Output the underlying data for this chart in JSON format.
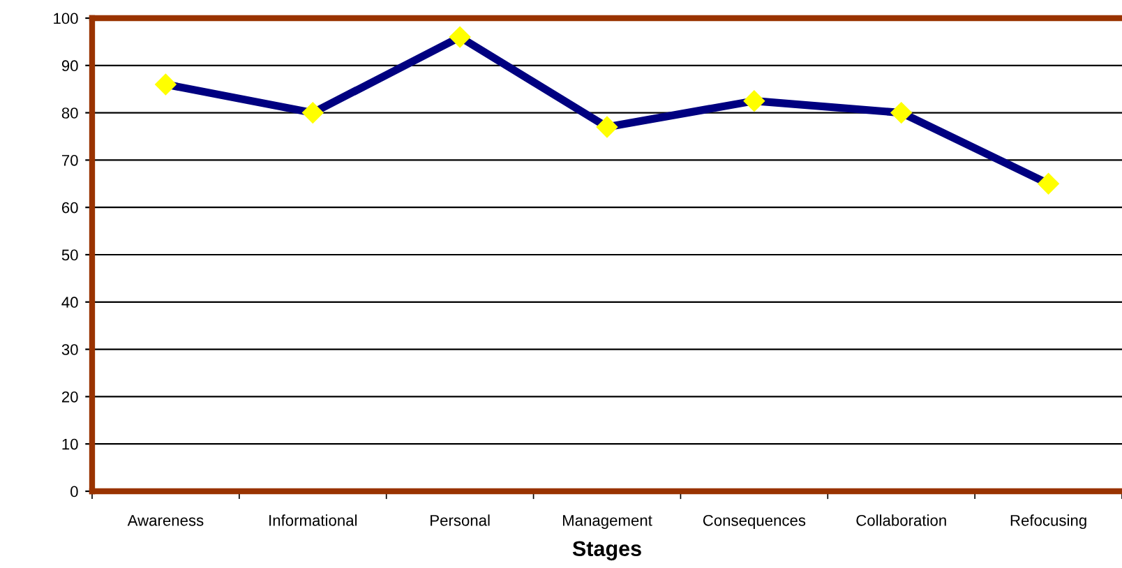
{
  "chart_data": {
    "type": "line",
    "xlabel": "Stages",
    "categories": [
      "Awareness",
      "Informational",
      "Personal",
      "Management",
      "Consequences",
      "Collaboration",
      "Refocusing"
    ],
    "series": [
      {
        "color": "#000080",
        "values": [
          86,
          80,
          96,
          77,
          82.5,
          80,
          65
        ]
      }
    ],
    "ylim": [
      0,
      100
    ],
    "yticks": [
      0,
      10,
      20,
      30,
      40,
      50,
      60,
      70,
      80,
      90,
      100
    ],
    "grid": "y",
    "marker": "diamond",
    "line_style": "solid",
    "legend": false
  }
}
